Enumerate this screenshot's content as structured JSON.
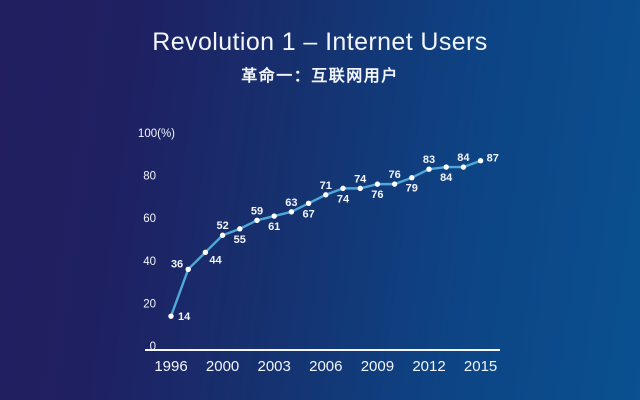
{
  "header": {
    "title": "Revolution 1 – Internet Users",
    "subtitle": "革命一：互联网用户"
  },
  "colors": {
    "background_left": "#211f60",
    "background_right": "#0a5190",
    "line": "#4fa8d8",
    "dot": "#ffffff",
    "text": "#f2f5fa"
  },
  "chart_data": {
    "type": "line",
    "title": "Revolution 1 – Internet Users",
    "subtitle": "革命一：互联网用户",
    "unit": "%",
    "values": [
      14,
      36,
      44,
      52,
      55,
      59,
      61,
      63,
      67,
      71,
      74,
      74,
      76,
      76,
      79,
      83,
      84,
      84,
      87
    ],
    "point_label_positions": [
      "right",
      "left",
      "below-right",
      "above",
      "below",
      "above",
      "below",
      "above",
      "below",
      "above",
      "below",
      "above",
      "below",
      "above",
      "below",
      "above",
      "below",
      "above",
      "above-right"
    ],
    "x_tick_labels": [
      "1996",
      "2000",
      "2003",
      "2006",
      "2009",
      "2012",
      "2015"
    ],
    "x_tick_point_indices": [
      0,
      3,
      6,
      9,
      12,
      15,
      18
    ],
    "y_ticks": [
      0,
      20,
      40,
      60,
      80,
      100
    ],
    "y_tick_top_label": "100(%)",
    "ylim": [
      0,
      100
    ],
    "grid": false,
    "legend": false
  }
}
